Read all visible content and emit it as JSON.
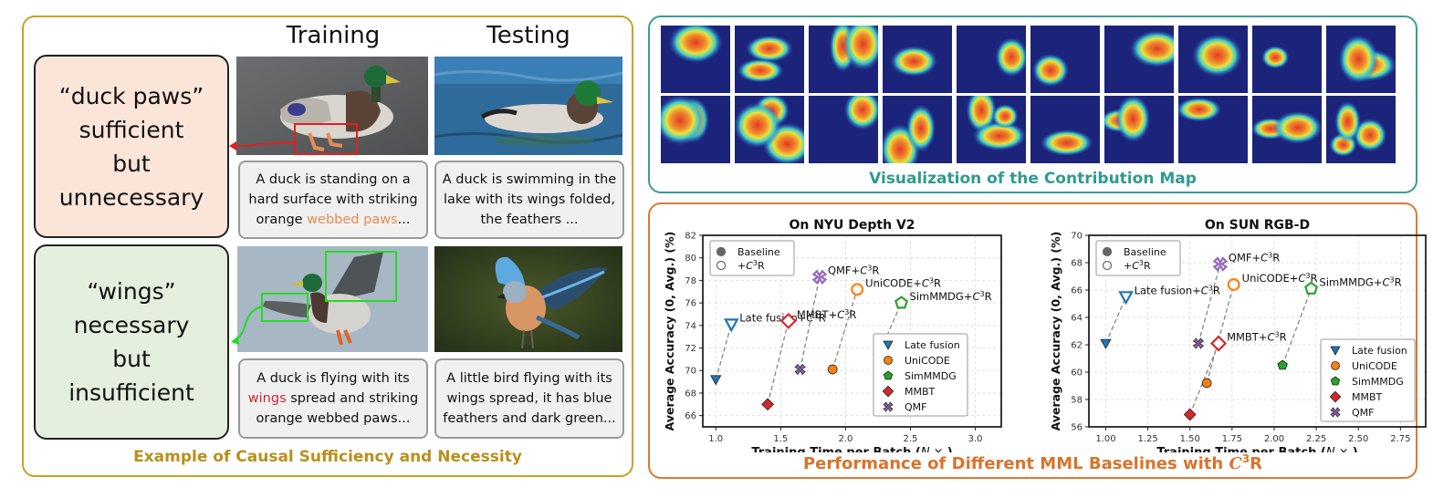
{
  "left_panel": {
    "column_headers": [
      "Training",
      "Testing"
    ],
    "concepts": [
      {
        "lines": [
          "“duck paws”",
          "sufficient",
          "but",
          "unnecessary"
        ],
        "bg": "#fbe5d9"
      },
      {
        "lines": [
          "“wings”",
          "necessary",
          "but",
          "insufficient"
        ],
        "bg": "#e4efdd"
      }
    ],
    "captions": {
      "train_1": {
        "pre": "A duck is standing on a hard surface with  striking orange ",
        "hl": "webbed paws",
        "post": "..."
      },
      "test_1": {
        "pre": "A duck is swimming in the lake with its wings folded, the feathers ...",
        "hl": "",
        "post": ""
      },
      "train_2": {
        "pre": "A duck is flying with its ",
        "hl": "wings",
        "post": " spread and striking orange webbed paws..."
      },
      "test_2": {
        "pre": "A little bird flying with its wings spread, it has blue feathers and dark green...",
        "hl": "",
        "post": ""
      }
    },
    "images": [
      {
        "name": "duck-standing-image",
        "highlight": "red-box-paws"
      },
      {
        "name": "duck-swimming-image"
      },
      {
        "name": "duck-flying-image",
        "highlight": "green-boxes-wings"
      },
      {
        "name": "bluebird-flying-image"
      }
    ],
    "title": "Example of Causal Sufficiency and Necessity",
    "title_color": "#b8901c"
  },
  "vis_panel": {
    "title": "Visualization of the Contribution Map",
    "title_color": "#2f9a90",
    "rows": 2,
    "cols": 10
  },
  "perf_panel": {
    "title_pre": "Performance of Different MML Baselines with ",
    "title_math": "C",
    "title_sup": "3",
    "title_post": "R",
    "title_color": "#d9742c"
  },
  "chart_data": [
    {
      "type": "scatter",
      "title": "On NYU Depth V2",
      "xlabel": "Training Time per Batch (N×)",
      "ylabel": "Average Accuracy (0, Avg.) (%)",
      "xlim": [
        0.9,
        3.2
      ],
      "ylim": [
        65,
        82
      ],
      "xticks": [
        1.0,
        1.5,
        2.0,
        2.5,
        3.0
      ],
      "xtick_labels": [
        "1.0",
        "1.5",
        "2.0",
        "2.5",
        "3.0"
      ],
      "yticks": [
        66,
        68,
        70,
        72,
        74,
        76,
        78,
        80,
        82
      ],
      "grid": true,
      "legend_markers": [
        {
          "label": "Baseline",
          "style": "filled"
        },
        {
          "label": "+C³R",
          "style": "hollow"
        }
      ],
      "legend_position": "lower right",
      "series": [
        {
          "name": "Late fusion",
          "marker": "triangle-down",
          "color": "#1f77b4",
          "baseline": [
            1.0,
            69.2
          ],
          "c3r": [
            1.12,
            74.1
          ],
          "label": "Late fusion+C³R"
        },
        {
          "name": "UniCODE",
          "marker": "circle",
          "color": "#ff7f0e",
          "baseline": [
            1.9,
            70.1
          ],
          "c3r": [
            2.09,
            77.2
          ],
          "label": "UniCODE+C³R"
        },
        {
          "name": "SimMMDG",
          "marker": "pentagon",
          "color": "#2ca02c",
          "baseline": [
            2.25,
            71.3
          ],
          "c3r": [
            2.43,
            76.0
          ],
          "label": "SimMMDG+C³R"
        },
        {
          "name": "MMBT",
          "marker": "diamond",
          "color": "#d62728",
          "baseline": [
            1.4,
            67.0
          ],
          "c3r": [
            1.56,
            74.4
          ],
          "label": "MMBT+C³R"
        },
        {
          "name": "QMF",
          "marker": "x-cross",
          "color": "#9467bd",
          "baseline": [
            1.65,
            70.1
          ],
          "c3r": [
            1.8,
            78.3
          ],
          "label": "QMF+C³R"
        }
      ]
    },
    {
      "type": "scatter",
      "title": "On SUN RGB-D",
      "xlabel": "Training Time per Batch (N×)",
      "ylabel": "Average Accuracy (0, Avg.) (%)",
      "xlim": [
        0.9,
        2.9
      ],
      "ylim": [
        56,
        70
      ],
      "xticks": [
        1.0,
        1.25,
        1.5,
        1.75,
        2.0,
        2.25,
        2.5,
        2.75
      ],
      "xtick_labels": [
        "1.00",
        "1.25",
        "1.50",
        "1.75",
        "2.00",
        "2.25",
        "2.50",
        "2.75"
      ],
      "yticks": [
        56,
        58,
        60,
        62,
        64,
        66,
        68,
        70
      ],
      "grid": true,
      "legend_markers": [
        {
          "label": "Baseline",
          "style": "filled"
        },
        {
          "label": "+C³R",
          "style": "hollow"
        }
      ],
      "legend_position": "lower right",
      "series": [
        {
          "name": "Late fusion",
          "marker": "triangle-down",
          "color": "#1f77b4",
          "baseline": [
            1.0,
            62.1
          ],
          "c3r": [
            1.12,
            65.5
          ],
          "label": "Late fusion+C³R"
        },
        {
          "name": "UniCODE",
          "marker": "circle",
          "color": "#ff7f0e",
          "baseline": [
            1.6,
            59.2
          ],
          "c3r": [
            1.76,
            66.4
          ],
          "label": "UniCODE+C³R"
        },
        {
          "name": "SimMMDG",
          "marker": "pentagon",
          "color": "#2ca02c",
          "baseline": [
            2.05,
            60.5
          ],
          "c3r": [
            2.22,
            66.1
          ],
          "label": "SimMMDG+C³R"
        },
        {
          "name": "MMBT",
          "marker": "diamond",
          "color": "#d62728",
          "baseline": [
            1.5,
            56.9
          ],
          "c3r": [
            1.67,
            62.1
          ],
          "label": "MMBT+C³R"
        },
        {
          "name": "QMF",
          "marker": "x-cross",
          "color": "#9467bd",
          "baseline": [
            1.55,
            62.1
          ],
          "c3r": [
            1.68,
            67.9
          ],
          "label": "QMF+C³R"
        }
      ]
    }
  ]
}
